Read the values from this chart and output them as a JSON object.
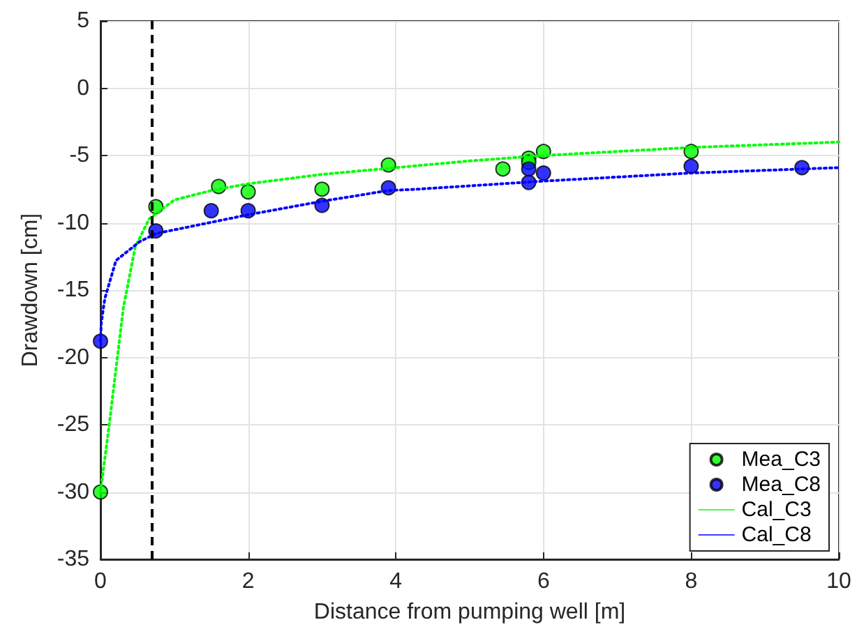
{
  "chart_data": {
    "type": "scatter",
    "xlabel": "Distance from pumping well [m]",
    "ylabel": "Drawdown [cm]",
    "xlim": [
      0,
      10
    ],
    "xticks": [
      0,
      2,
      4,
      6,
      8,
      10
    ],
    "ylim": [
      -35,
      5
    ],
    "yticks": [
      -35,
      -30,
      -25,
      -20,
      -15,
      -10,
      -5,
      0,
      5
    ],
    "grid": true,
    "legend": "bottom right",
    "ref_lines": [
      {
        "axis": "x",
        "value": 0.7,
        "color": "#000000",
        "line_style": "dashed"
      }
    ],
    "series": [
      {
        "name": "Mea_C3",
        "marker": "circle",
        "color": "#00ff00",
        "x": [
          0,
          0.75,
          1.6,
          2,
          3,
          3.9,
          5.45,
          5.8,
          5.8,
          6,
          8
        ],
        "values": [
          -30,
          -8.8,
          -7.3,
          -7.7,
          -7.5,
          -5.7,
          -6,
          -5.2,
          -5.5,
          -4.7,
          -4.7
        ]
      },
      {
        "name": "Mea_C8",
        "marker": "circle",
        "color": "#0000ff",
        "x": [
          0,
          0.75,
          1.5,
          2,
          3,
          3.9,
          5.8,
          5.8,
          6,
          8,
          9.5
        ],
        "values": [
          -18.8,
          -10.6,
          -9.1,
          -9.1,
          -8.7,
          -7.4,
          -6,
          -7,
          -6.3,
          -5.8,
          -5.9
        ]
      },
      {
        "name": "Cal_C3",
        "type": "line",
        "marker": "none",
        "line_style": "dotted",
        "color": "#00ff00",
        "x": [
          0,
          0.12,
          0.31,
          0.47,
          0.66,
          1,
          1.5,
          2,
          3,
          4,
          5,
          6,
          8,
          10
        ],
        "values": [
          -30,
          -24.9,
          -16.3,
          -11.8,
          -9.7,
          -8.3,
          -7.6,
          -7.1,
          -6.4,
          -5.9,
          -5.4,
          -5,
          -4.4,
          -4
        ]
      },
      {
        "name": "Cal_C8",
        "type": "line",
        "marker": "none",
        "line_style": "dotted",
        "color": "#0000ff",
        "x": [
          0,
          0.01,
          0.04,
          0.06,
          0.21,
          0.53,
          0.75,
          2,
          3,
          3.9,
          4.3,
          6,
          8,
          10
        ],
        "values": [
          -18.8,
          -17.5,
          -16.3,
          -15.6,
          -12.8,
          -11.4,
          -10.8,
          -9.4,
          -8.4,
          -7.6,
          -7.5,
          -6.9,
          -6.3,
          -5.9
        ]
      }
    ]
  }
}
